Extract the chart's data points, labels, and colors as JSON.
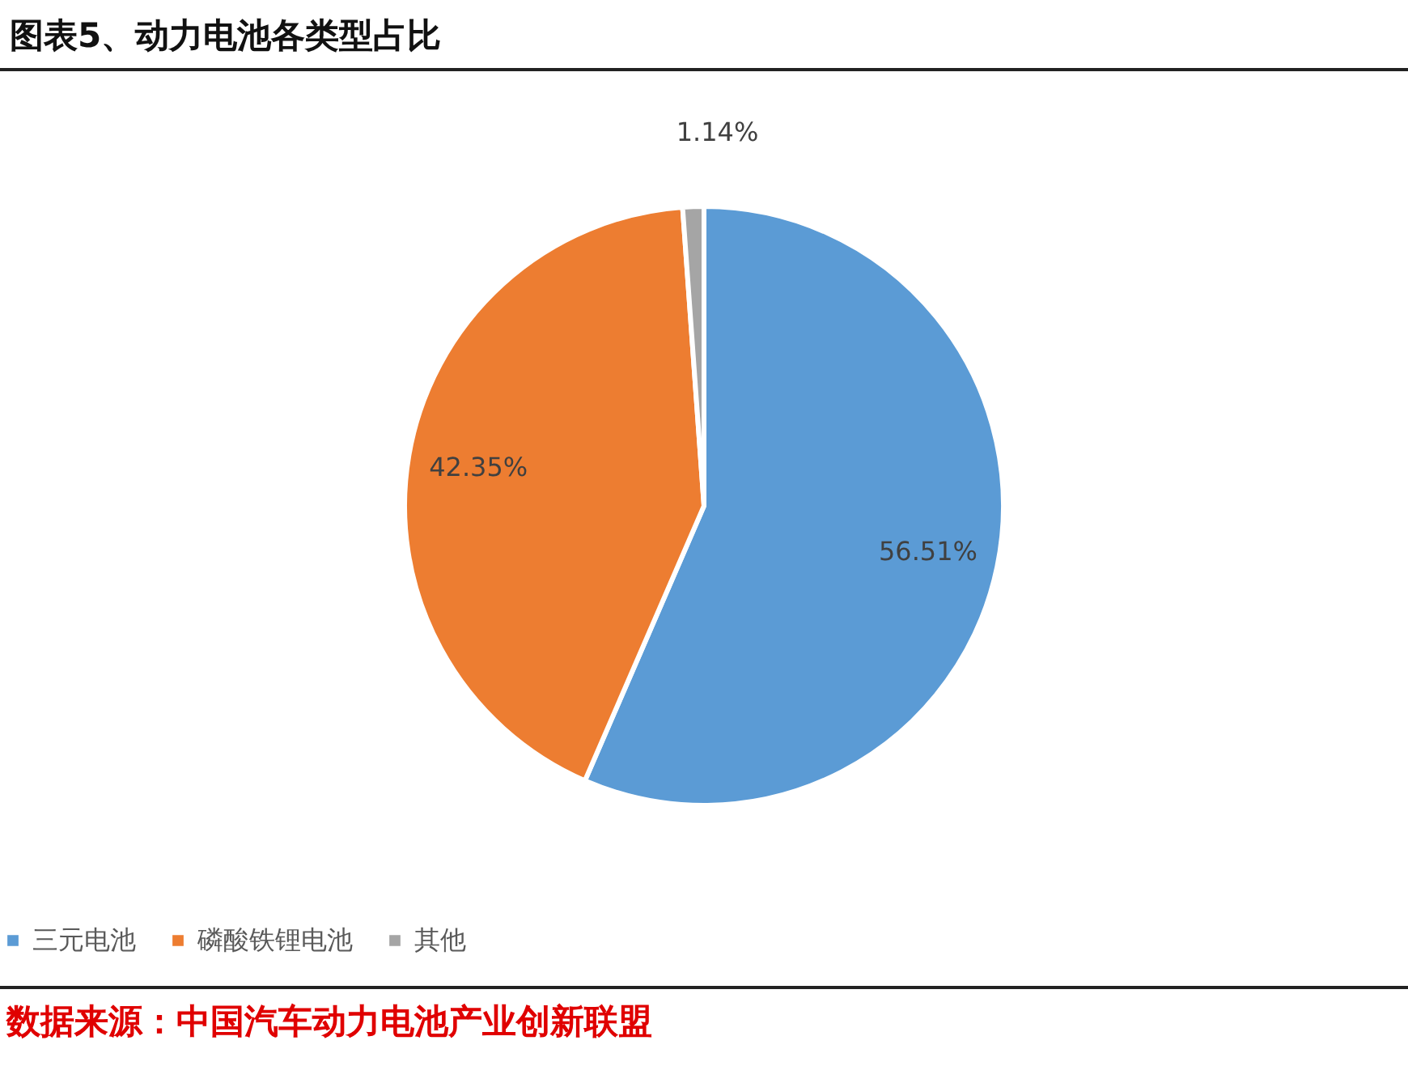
{
  "chart_data": {
    "type": "pie",
    "title": "图表5、动力电池各类型占比",
    "categories": [
      "三元电池",
      "磷酸铁锂电池",
      "其他"
    ],
    "values": [
      56.51,
      42.35,
      1.14
    ],
    "colors": [
      "#5b9bd5",
      "#ed7d31",
      "#a5a5a5"
    ],
    "value_labels": [
      "56.51%",
      "42.35%",
      "1.14%"
    ],
    "legend": "bottom",
    "annotations": [
      "数据来源：中国汽车动力电池产业创新联盟"
    ]
  }
}
